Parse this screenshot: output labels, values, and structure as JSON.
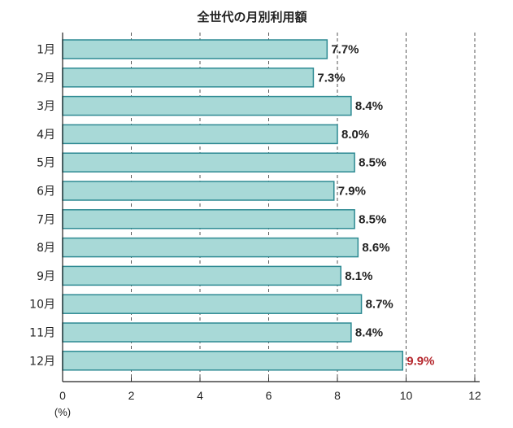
{
  "chart_data": {
    "type": "bar",
    "orientation": "horizontal",
    "title": "全世代の月別利用額",
    "xlabel": "(%)",
    "ylabel": "",
    "categories": [
      "1月",
      "2月",
      "3月",
      "4月",
      "5月",
      "6月",
      "7月",
      "8月",
      "9月",
      "10月",
      "11月",
      "12月"
    ],
    "values": [
      7.7,
      7.3,
      8.4,
      8.0,
      8.5,
      7.9,
      8.5,
      8.6,
      8.1,
      8.7,
      8.4,
      9.9
    ],
    "value_labels": [
      "7.7%",
      "7.3%",
      "8.4%",
      "8.0%",
      "8.5%",
      "7.9%",
      "8.5%",
      "8.6%",
      "8.1%",
      "8.7%",
      "8.4%",
      "9.9%"
    ],
    "xlim": [
      0,
      12
    ],
    "xticks": [
      0,
      2,
      4,
      6,
      8,
      10,
      12
    ],
    "grid": "vertical-dashed",
    "colors": {
      "bar_fill": "#a8d9d7",
      "bar_stroke": "#2e8a93",
      "label": "#222222",
      "highlight_label": "#b5272d",
      "axis": "#222222",
      "grid": "#555555"
    },
    "highlight_index": 11
  }
}
